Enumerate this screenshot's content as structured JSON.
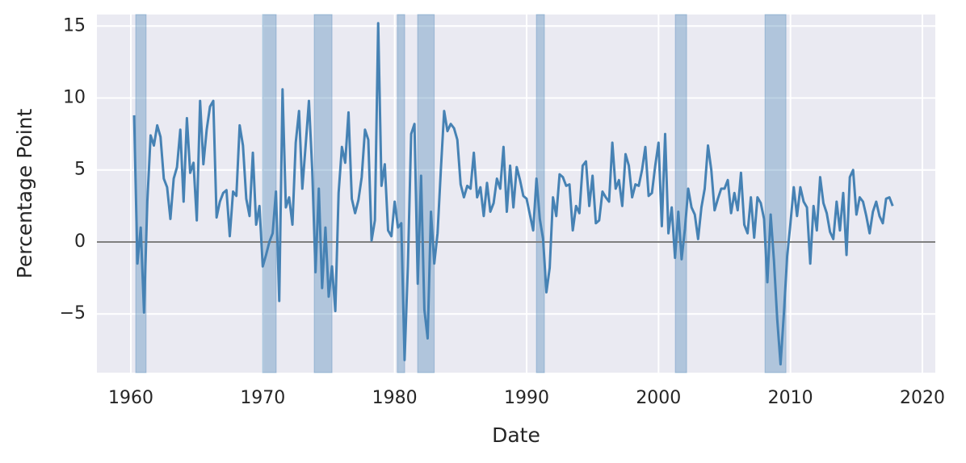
{
  "chart_data": {
    "type": "line",
    "x_label": "Date",
    "y_label": "Percentage Point",
    "xlim": [
      1957.43,
      2020.98
    ],
    "ylim": [
      -9.08,
      15.8
    ],
    "xticks": [
      1960,
      1970,
      1980,
      1990,
      2000,
      2010,
      2020
    ],
    "yticks": [
      {
        "value": -5,
        "label": "−5"
      },
      0,
      5,
      10,
      15
    ],
    "grid": true,
    "background": "#eaeaf2",
    "hline": 0,
    "hline_color": "#7f7f7f",
    "recession_color": "#4682b4",
    "recessions": [
      [
        1960.37,
        1961.16
      ],
      [
        1969.98,
        1971.02
      ],
      [
        1973.9,
        1975.25
      ],
      [
        1980.2,
        1980.76
      ],
      [
        1981.74,
        1983.0
      ],
      [
        1990.74,
        1991.35
      ],
      [
        2001.27,
        2002.13
      ],
      [
        2008.07,
        2009.66
      ]
    ],
    "x": [
      1960.25,
      1960.5,
      1960.75,
      1961,
      1961.25,
      1961.5,
      1961.75,
      1962,
      1962.25,
      1962.5,
      1962.75,
      1963,
      1963.25,
      1963.5,
      1963.75,
      1964,
      1964.25,
      1964.5,
      1964.75,
      1965,
      1965.25,
      1965.5,
      1965.75,
      1966,
      1966.25,
      1966.5,
      1966.75,
      1967,
      1967.25,
      1967.5,
      1967.75,
      1968,
      1968.25,
      1968.5,
      1968.75,
      1969,
      1969.25,
      1969.5,
      1969.75,
      1970,
      1970.25,
      1970.5,
      1970.75,
      1971,
      1971.25,
      1971.5,
      1971.75,
      1972,
      1972.25,
      1972.5,
      1972.75,
      1973,
      1973.25,
      1973.5,
      1973.75,
      1974,
      1974.25,
      1974.5,
      1974.75,
      1975,
      1975.25,
      1975.5,
      1975.75,
      1976,
      1976.25,
      1976.5,
      1976.75,
      1977,
      1977.25,
      1977.5,
      1977.75,
      1978,
      1978.25,
      1978.5,
      1978.75,
      1979,
      1979.25,
      1979.5,
      1979.75,
      1980,
      1980.25,
      1980.5,
      1980.75,
      1981,
      1981.25,
      1981.5,
      1981.75,
      1982,
      1982.25,
      1982.5,
      1982.75,
      1983,
      1983.25,
      1983.5,
      1983.75,
      1984,
      1984.25,
      1984.5,
      1984.75,
      1985,
      1985.25,
      1985.5,
      1985.75,
      1986,
      1986.25,
      1986.5,
      1986.75,
      1987,
      1987.25,
      1987.5,
      1987.75,
      1988,
      1988.25,
      1988.5,
      1988.75,
      1989,
      1989.25,
      1989.5,
      1989.75,
      1990,
      1990.25,
      1990.5,
      1990.75,
      1991,
      1991.25,
      1991.5,
      1991.75,
      1992,
      1992.25,
      1992.5,
      1992.75,
      1993,
      1993.25,
      1993.5,
      1993.75,
      1994,
      1994.25,
      1994.5,
      1994.75,
      1995,
      1995.25,
      1995.5,
      1995.75,
      1996,
      1996.25,
      1996.5,
      1996.75,
      1997,
      1997.25,
      1997.5,
      1997.75,
      1998,
      1998.25,
      1998.5,
      1998.75,
      1999,
      1999.25,
      1999.5,
      1999.75,
      2000,
      2000.25,
      2000.5,
      2000.75,
      2001,
      2001.25,
      2001.5,
      2001.75,
      2002,
      2002.25,
      2002.5,
      2002.75,
      2003,
      2003.25,
      2003.5,
      2003.75,
      2004,
      2004.25,
      2004.5,
      2004.75,
      2005,
      2005.25,
      2005.5,
      2005.75,
      2006,
      2006.25,
      2006.5,
      2006.75,
      2007,
      2007.25,
      2007.5,
      2007.75,
      2008,
      2008.25,
      2008.5,
      2008.75,
      2009,
      2009.25,
      2009.5,
      2009.75,
      2010,
      2010.25,
      2010.5,
      2010.75,
      2011,
      2011.25,
      2011.5,
      2011.75,
      2012,
      2012.25,
      2012.5,
      2012.75,
      2013,
      2013.25,
      2013.5,
      2013.75,
      2014,
      2014.25,
      2014.5,
      2014.75,
      2015,
      2015.25,
      2015.5,
      2015.75,
      2016,
      2016.25,
      2016.5,
      2016.75,
      2017,
      2017.25,
      2017.5,
      2017.75
    ],
    "series": [
      {
        "color": "#4682b4",
        "values": [
          8.8,
          -1.5,
          1.0,
          -4.9,
          2.8,
          7.4,
          6.7,
          8.1,
          7.3,
          4.4,
          3.8,
          1.6,
          4.4,
          5.2,
          7.8,
          2.8,
          8.6,
          4.8,
          5.5,
          1.5,
          9.8,
          5.4,
          7.8,
          9.4,
          9.8,
          1.7,
          2.8,
          3.4,
          3.6,
          0.4,
          3.5,
          3.2,
          8.1,
          6.7,
          3.0,
          1.8,
          6.2,
          1.2,
          2.5,
          -1.7,
          -0.9,
          0.0,
          0.6,
          3.5,
          -4.1,
          10.6,
          2.4,
          3.1,
          1.2,
          6.9,
          9.1,
          3.7,
          6.7,
          9.8,
          5.0,
          -2.1,
          3.7,
          -3.2,
          1.0,
          -3.8,
          -1.7,
          -4.8,
          3.4,
          6.6,
          5.5,
          9.0,
          3.0,
          2.0,
          2.9,
          4.5,
          7.8,
          7.1,
          0.1,
          1.5,
          15.2,
          3.9,
          5.4,
          0.8,
          0.4,
          2.8,
          1.0,
          1.3,
          -8.2,
          -1.7,
          7.5,
          8.2,
          -2.9,
          4.6,
          -4.7,
          -6.7,
          2.1,
          -1.5,
          0.6,
          5.0,
          9.1,
          7.7,
          8.2,
          7.9,
          7.1,
          4.0,
          3.1,
          3.9,
          3.7,
          6.2,
          3.1,
          3.8,
          1.8,
          4.1,
          2.1,
          2.7,
          4.4,
          3.7,
          6.6,
          2.1,
          5.3,
          2.4,
          5.2,
          4.3,
          3.2,
          3.0,
          1.9,
          0.8,
          4.4,
          1.6,
          0.2,
          -3.5,
          -1.8,
          3.1,
          1.8,
          4.7,
          4.5,
          3.9,
          4.0,
          0.8,
          2.5,
          2.0,
          5.3,
          5.6,
          2.5,
          4.6,
          1.3,
          1.5,
          3.5,
          3.1,
          2.8,
          6.9,
          3.7,
          4.3,
          2.5,
          6.1,
          5.3,
          3.1,
          4.0,
          3.9,
          5.0,
          6.6,
          3.2,
          3.4,
          5.3,
          6.9,
          1.1,
          7.5,
          0.6,
          2.4,
          -1.1,
          2.1,
          -1.2,
          0.9,
          3.7,
          2.4,
          1.9,
          0.2,
          2.4,
          3.7,
          6.7,
          5.0,
          2.2,
          3.0,
          3.7,
          3.7,
          4.3,
          2.0,
          3.4,
          2.2,
          4.8,
          1.2,
          0.6,
          3.1,
          0.3,
          3.1,
          2.7,
          1.6,
          -2.8,
          1.9,
          -1.3,
          -5.4,
          -8.5,
          -5.0,
          -1.0,
          1.3,
          3.8,
          1.8,
          3.8,
          2.8,
          2.4,
          -1.5,
          2.5,
          0.8,
          4.5,
          2.7,
          2.0,
          0.7,
          0.2,
          2.8,
          0.8,
          3.4,
          -0.9,
          4.5,
          5.0,
          1.9,
          3.1,
          2.8,
          1.8,
          0.6,
          2.1,
          2.8,
          1.8,
          1.3,
          3.0,
          3.1,
          2.5
        ]
      }
    ]
  }
}
